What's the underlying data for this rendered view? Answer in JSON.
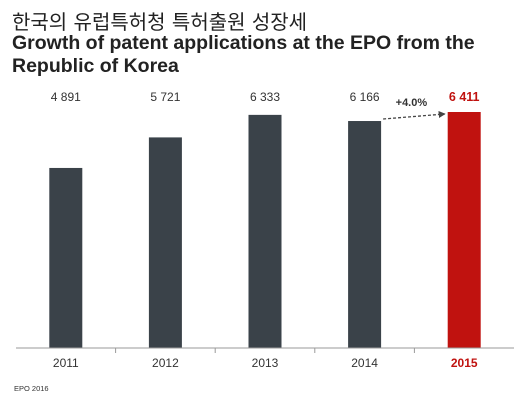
{
  "header": {
    "title_ko": "한국의 유럽특허청 특허출원 성장세",
    "title_en": "Growth of patent applications at the EPO from the Republic of Korea"
  },
  "chart_data": {
    "type": "bar",
    "categories": [
      "2011",
      "2012",
      "2013",
      "2014",
      "2015"
    ],
    "values": [
      4891,
      5721,
      6333,
      6166,
      6411
    ],
    "value_labels": [
      "4 891",
      "5 721",
      "6 333",
      "6 166",
      "6 411"
    ],
    "highlight_index": 4,
    "annotation": "+4.0%",
    "xlabel": "",
    "ylabel": "",
    "ylim": [
      0,
      6411
    ],
    "grid": false,
    "legend": false
  },
  "colors": {
    "bar": "#3a4249",
    "highlight": "#c0120f",
    "text": "#333333",
    "axis": "#9a9a9a",
    "arrow": "#444444"
  },
  "footer": {
    "source": "EPO 2016"
  }
}
